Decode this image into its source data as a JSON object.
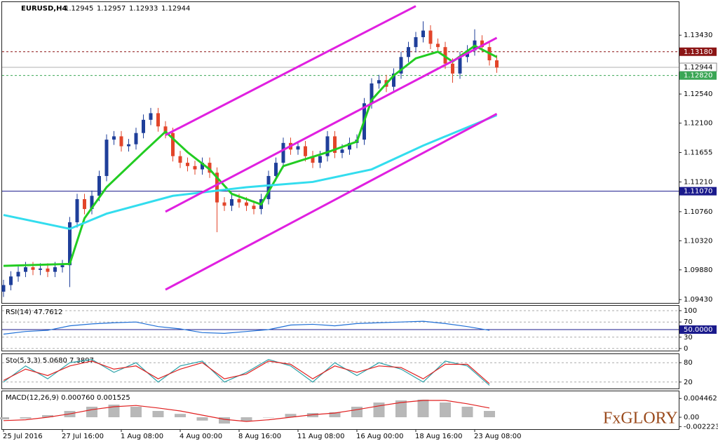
{
  "header": {
    "symbol": "EURUSD,H4",
    "quote": [
      1.12945,
      1.12957,
      1.12933,
      1.12944
    ]
  },
  "logo": "FxGLORY",
  "chart_data": [
    {
      "type": "candlestick",
      "categories": [
        "25 Jul 2016",
        null,
        null,
        null,
        null,
        null,
        null,
        null,
        "27 Jul 16:00",
        null,
        null,
        null,
        null,
        null,
        null,
        null,
        "1 Aug 08:00",
        null,
        null,
        null,
        null,
        null,
        null,
        null,
        "4 Aug 00:00",
        null,
        null,
        null,
        null,
        null,
        null,
        null,
        "8 Aug 16:00",
        null,
        null,
        null,
        null,
        null,
        null,
        null,
        "11 Aug 08:00",
        null,
        null,
        null,
        null,
        null,
        null,
        null,
        "16 Aug 00:00",
        null,
        null,
        null,
        null,
        null,
        null,
        null,
        "18 Aug 16:00",
        null,
        null,
        null,
        null,
        null,
        null,
        null,
        "23 Aug 08:00",
        null,
        null,
        null
      ],
      "open": [
        1.0955,
        1.0965,
        1.0978,
        1.0985,
        1.0992,
        1.0988,
        1.099,
        1.0985,
        1.0992,
        1.0995,
        1.106,
        1.1095,
        1.108,
        1.11,
        1.113,
        1.1185,
        1.119,
        1.1175,
        1.1178,
        1.1195,
        1.1215,
        1.1225,
        1.1205,
        1.1195,
        1.116,
        1.115,
        1.1145,
        1.114,
        1.115,
        1.1135,
        1.109,
        1.1085,
        1.1095,
        1.109,
        1.1085,
        1.108,
        1.1095,
        1.113,
        1.115,
        1.118,
        1.117,
        1.1175,
        1.116,
        1.115,
        1.116,
        1.119,
        1.1165,
        1.117,
        1.118,
        1.1185,
        1.124,
        1.127,
        1.1275,
        1.1265,
        1.1285,
        1.131,
        1.1325,
        1.134,
        1.135,
        1.133,
        1.1325,
        1.13,
        1.1285,
        1.131,
        1.132,
        1.1335,
        1.1325,
        1.1305
      ],
      "high": [
        1.0973,
        1.0986,
        1.0993,
        1.1,
        1.1,
        1.0998,
        1.0998,
        1.1,
        1.1003,
        1.1068,
        1.1103,
        1.1103,
        1.1108,
        1.1138,
        1.1193,
        1.1198,
        1.1198,
        1.1186,
        1.1203,
        1.1223,
        1.1233,
        1.1233,
        1.1213,
        1.1203,
        1.1168,
        1.1158,
        1.1153,
        1.1158,
        1.1158,
        1.1143,
        1.1098,
        1.1103,
        1.1103,
        1.1098,
        1.1093,
        1.1103,
        1.1138,
        1.1158,
        1.1188,
        1.1188,
        1.1183,
        1.1183,
        1.1168,
        1.1168,
        1.1198,
        1.1198,
        1.1178,
        1.1188,
        1.1193,
        1.1248,
        1.1278,
        1.1283,
        1.1283,
        1.1293,
        1.1318,
        1.1333,
        1.1348,
        1.1364,
        1.1358,
        1.1338,
        1.1333,
        1.1308,
        1.1318,
        1.1328,
        1.1352,
        1.1343,
        1.1333,
        1.1313
      ],
      "low": [
        1.0947,
        1.0957,
        1.097,
        1.0977,
        1.098,
        1.098,
        1.0977,
        1.0977,
        1.0984,
        1.0962,
        1.1052,
        1.1072,
        1.1072,
        1.1092,
        1.1122,
        1.1177,
        1.1167,
        1.1167,
        1.117,
        1.1187,
        1.1207,
        1.1197,
        1.1187,
        1.1152,
        1.1142,
        1.1137,
        1.1132,
        1.1132,
        1.1127,
        1.1045,
        1.1077,
        1.1077,
        1.1082,
        1.1077,
        1.1072,
        1.1072,
        1.1087,
        1.1122,
        1.1142,
        1.1162,
        1.1162,
        1.1152,
        1.1142,
        1.1142,
        1.1152,
        1.1157,
        1.1157,
        1.1162,
        1.1172,
        1.1177,
        1.1232,
        1.1262,
        1.1257,
        1.1257,
        1.1277,
        1.1302,
        1.1317,
        1.1332,
        1.1322,
        1.1317,
        1.1292,
        1.1271,
        1.1277,
        1.1302,
        1.1312,
        1.1317,
        1.1297,
        1.1286
      ],
      "close": [
        1.0965,
        1.0978,
        1.0985,
        1.0992,
        1.0988,
        1.099,
        1.0985,
        1.0992,
        1.0995,
        1.106,
        1.1095,
        1.108,
        1.11,
        1.113,
        1.1185,
        1.119,
        1.1175,
        1.1178,
        1.1195,
        1.1215,
        1.1225,
        1.1205,
        1.1195,
        1.116,
        1.115,
        1.1145,
        1.114,
        1.115,
        1.1135,
        1.109,
        1.1085,
        1.1095,
        1.109,
        1.1085,
        1.108,
        1.1095,
        1.113,
        1.115,
        1.118,
        1.117,
        1.1175,
        1.116,
        1.115,
        1.116,
        1.119,
        1.1165,
        1.117,
        1.118,
        1.1185,
        1.124,
        1.127,
        1.1275,
        1.1265,
        1.1285,
        1.131,
        1.1325,
        1.134,
        1.135,
        1.133,
        1.1325,
        1.13,
        1.1285,
        1.131,
        1.132,
        1.1335,
        1.1325,
        1.1305,
        1.1294
      ],
      "up_color": "#1f3f9a",
      "down_color": "#e2452a",
      "ylim": [
        1.0939,
        1.1392
      ],
      "yticks": [
        {
          "value": 1.1343,
          "label": "1.13430"
        },
        {
          "value": 1.1254,
          "label": "1.12540"
        },
        {
          "value": 1.121,
          "label": "1.12100"
        },
        {
          "value": 1.11655,
          "label": "1.11655"
        },
        {
          "value": 1.1121,
          "label": "1.11210"
        },
        {
          "value": 1.1076,
          "label": "1.10760"
        },
        {
          "value": 1.1032,
          "label": "1.10320"
        },
        {
          "value": 1.0988,
          "label": "1.09880"
        },
        {
          "value": 1.0943,
          "label": "1.09430"
        }
      ],
      "levels": [
        {
          "value": 1.1318,
          "label": "1.13180",
          "color": "#8b1414",
          "style": "dashed"
        },
        {
          "value": 1.12944,
          "label": "1.12944",
          "color": "#b0b0b0",
          "style": "solid"
        },
        {
          "value": 1.1282,
          "label": "1.12820",
          "color": "#3aa655",
          "style": "dashed"
        },
        {
          "value": 1.1107,
          "label": "1.11070",
          "color": "#1a1a8c",
          "style": "solid"
        }
      ],
      "series": [
        {
          "color": "#22cc22",
          "x": [
            0,
            9,
            11,
            14,
            19,
            22,
            25,
            28,
            31,
            35,
            38,
            40,
            44,
            48,
            50,
            53,
            56,
            59,
            61,
            64,
            67
          ],
          "values": [
            1.0994,
            1.0997,
            1.1066,
            1.1113,
            1.1166,
            1.1197,
            1.1166,
            1.114,
            1.1103,
            1.1087,
            1.1145,
            1.1152,
            1.1166,
            1.1182,
            1.1245,
            1.1282,
            1.1308,
            1.1318,
            1.1303,
            1.1327,
            1.131
          ]
        },
        {
          "color": "#33ddee",
          "x": [
            0,
            9,
            14,
            23,
            33,
            42,
            50,
            57,
            67
          ],
          "values": [
            1.1071,
            1.105,
            1.1073,
            1.11,
            1.1113,
            1.1121,
            1.114,
            1.1176,
            1.1222
          ]
        }
      ],
      "channels": [
        {
          "color": "#e020e0",
          "from": [
            22,
            1.1192
          ],
          "to": [
            56,
            1.1387
          ]
        },
        {
          "color": "#e020e0",
          "from": [
            22,
            1.1076
          ],
          "to": [
            67,
            1.1339
          ]
        },
        {
          "color": "#e020e0",
          "from": [
            22,
            1.0958
          ],
          "to": [
            67,
            1.1224
          ]
        }
      ]
    },
    {
      "type": "line",
      "title": "RSI(14) 47.7612",
      "x": [
        0,
        3,
        6,
        9,
        12,
        15,
        18,
        21,
        24,
        27,
        30,
        33,
        36,
        39,
        42,
        45,
        48,
        51,
        54,
        57,
        60,
        63,
        66
      ],
      "series": [
        {
          "color": "#1f6fd6",
          "values": [
            38,
            45,
            48,
            60,
            65,
            68,
            70,
            58,
            52,
            42,
            40,
            45,
            50,
            62,
            64,
            60,
            66,
            68,
            70,
            72,
            66,
            58,
            48
          ]
        }
      ],
      "ylim": [
        0,
        100
      ],
      "yticks": [
        100,
        70,
        {
          "value": 50,
          "label": "50.0000"
        },
        30,
        0
      ]
    },
    {
      "type": "line",
      "title": "Sto(5,3,3) 5.0680 7.3897",
      "x": [
        0,
        3,
        6,
        9,
        12,
        15,
        18,
        21,
        24,
        27,
        30,
        33,
        36,
        39,
        42,
        45,
        48,
        51,
        54,
        57,
        60,
        63,
        66
      ],
      "series": [
        {
          "color": "#2aa1a8",
          "values": [
            20,
            70,
            30,
            80,
            90,
            50,
            80,
            20,
            70,
            85,
            20,
            50,
            90,
            70,
            20,
            80,
            40,
            80,
            60,
            20,
            85,
            70,
            10
          ]
        },
        {
          "color": "#e02020",
          "values": [
            25,
            60,
            40,
            70,
            85,
            60,
            70,
            30,
            60,
            80,
            30,
            45,
            85,
            75,
            30,
            70,
            50,
            70,
            65,
            30,
            75,
            75,
            15
          ]
        }
      ],
      "ylim": [
        0,
        100
      ],
      "yticks": [
        80,
        20
      ]
    },
    {
      "type": "bar",
      "title": "MACD(12,26,9) 0.000760 0.001525",
      "x": [
        0,
        3,
        6,
        9,
        12,
        15,
        18,
        21,
        24,
        27,
        30,
        33,
        36,
        39,
        42,
        45,
        48,
        51,
        54,
        57,
        60,
        63,
        66
      ],
      "color": "#b8b8b8",
      "values": [
        -0.0005,
        -0.0003,
        0.0005,
        0.0015,
        0.0025,
        0.003,
        0.0025,
        0.0015,
        0.0008,
        -0.0008,
        -0.0015,
        -0.001,
        0,
        0.0008,
        0.001,
        0.0012,
        0.0025,
        0.0035,
        0.004,
        0.0042,
        0.0035,
        0.0025,
        0.0015
      ],
      "series": [
        {
          "color": "#e02020",
          "values": [
            -0.0008,
            -0.0006,
            0,
            0.0008,
            0.0018,
            0.0025,
            0.0028,
            0.0022,
            0.0015,
            0.0005,
            -0.0005,
            -0.001,
            -0.0006,
            0,
            0.0006,
            0.001,
            0.0018,
            0.0027,
            0.0035,
            0.004,
            0.004,
            0.0032,
            0.0022
          ]
        }
      ],
      "ylim": [
        -0.0025,
        0.0055
      ],
      "yticks": [
        0.004462,
        {
          "value": 0,
          "label": "0.00"
        },
        -0.002223
      ]
    }
  ]
}
